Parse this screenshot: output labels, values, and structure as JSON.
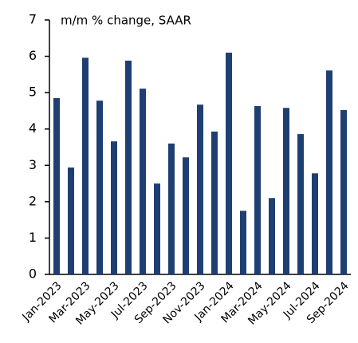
{
  "chart_data": {
    "type": "bar",
    "annotation": "m/m % change, SAAR",
    "categories": [
      "Jan-2023",
      null,
      "Mar-2023",
      null,
      "May-2023",
      null,
      "Jul-2023",
      null,
      "Sep-2023",
      null,
      "Nov-2023",
      null,
      "Jan-2024",
      null,
      "Mar-2024",
      null,
      "May-2024",
      null,
      "Jul-2024",
      null,
      "Sep-2024"
    ],
    "values": [
      4.85,
      2.94,
      5.96,
      4.78,
      3.66,
      5.88,
      5.11,
      2.5,
      3.6,
      3.22,
      4.67,
      3.93,
      6.1,
      1.75,
      4.63,
      2.1,
      4.58,
      3.86,
      2.78,
      5.61,
      4.52
    ],
    "color": "#1f3f73",
    "ylim": [
      0,
      7
    ],
    "yticks": [
      0,
      1,
      2,
      3,
      4,
      5,
      6,
      7
    ],
    "grid": false
  }
}
